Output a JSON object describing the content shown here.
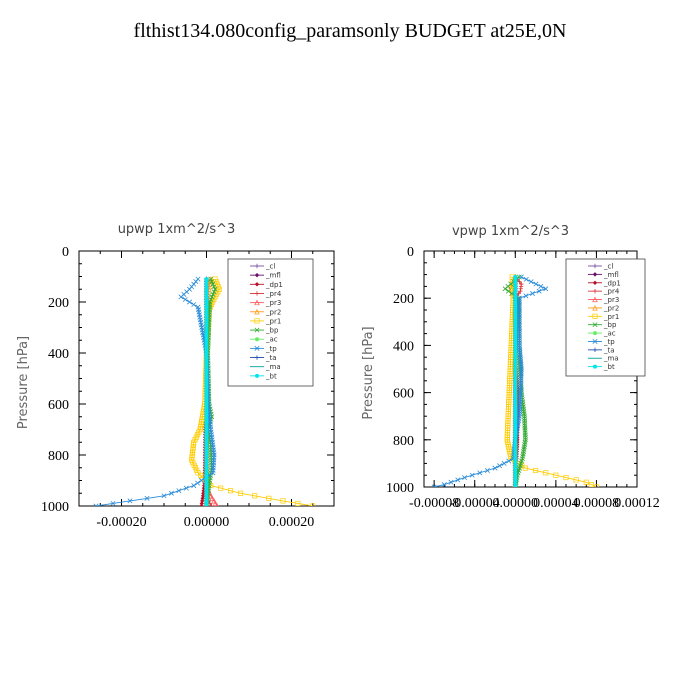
{
  "title": "flthist134.080config_paramsonly  BUDGET at25E,0N",
  "chart_data": [
    {
      "type": "line",
      "title": "upwp   1xm^2/s^3",
      "ylabel": "Pressure [hPa]",
      "ylim": [
        1000,
        0
      ],
      "xlim": [
        -0.0003,
        0.0003
      ],
      "xticks": [
        "-0.00020",
        "0.00000",
        "0.00020"
      ],
      "xtick_values": [
        -0.0002,
        0,
        0.0002
      ],
      "yticks": [
        "0",
        "200",
        "400",
        "600",
        "800",
        "1000"
      ],
      "ytick_values": [
        0,
        200,
        400,
        600,
        800,
        1000
      ],
      "legend_position": "top-right",
      "series": [
        {
          "name": "_cl",
          "color": "#7a4fa0",
          "marker": "+",
          "points": [
            [
              0,
              110
            ],
            [
              0,
              1000
            ]
          ]
        },
        {
          "name": "_mfl",
          "color": "#6a0f6a",
          "marker": "diamond",
          "points": [
            [
              0,
              110
            ],
            [
              0,
              1000
            ]
          ]
        },
        {
          "name": "_dp1",
          "color": "#b3122a",
          "marker": "diamond",
          "points": [
            [
              0,
              110
            ],
            [
              0,
              500
            ],
            [
              -3e-06,
              700
            ],
            [
              -4e-06,
              900
            ],
            [
              -8e-06,
              960
            ],
            [
              -1.2e-05,
              1000
            ]
          ]
        },
        {
          "name": "_pr4",
          "color": "#d9363e",
          "marker": "+",
          "points": [
            [
              0,
              110
            ],
            [
              0,
              950
            ],
            [
              8e-06,
              990
            ],
            [
              1.2e-05,
              1000
            ]
          ]
        },
        {
          "name": "_pr3",
          "color": "#ff5a5a",
          "marker": "triangle",
          "points": [
            [
              0,
              110
            ],
            [
              0,
              920
            ],
            [
              1e-05,
              960
            ],
            [
              2.5e-05,
              1000
            ]
          ]
        },
        {
          "name": "_pr2",
          "color": "#ff9a1a",
          "marker": "triangle",
          "points": [
            [
              1e-05,
              110
            ],
            [
              0,
              200
            ],
            [
              0,
              1000
            ]
          ]
        },
        {
          "name": "_pr1",
          "color": "#ffcc00",
          "marker": "square",
          "points": [
            [
              2e-05,
              110
            ],
            [
              3e-05,
              150
            ],
            [
              2e-05,
              180
            ],
            [
              6e-06,
              230
            ],
            [
              0,
              400
            ],
            [
              -4e-06,
              600
            ],
            [
              -1.5e-05,
              700
            ],
            [
              -3e-05,
              750
            ],
            [
              -3.5e-05,
              820
            ],
            [
              -2e-05,
              870
            ],
            [
              1e-05,
              920
            ],
            [
              8e-05,
              950
            ],
            [
              0.00018,
              980
            ],
            [
              0.00025,
              1000
            ]
          ]
        },
        {
          "name": "_bp",
          "color": "#33aa33",
          "marker": "x",
          "points": [
            [
              1e-05,
              110
            ],
            [
              2e-05,
              150
            ],
            [
              8e-06,
              200
            ],
            [
              3e-06,
              400
            ],
            [
              6e-06,
              600
            ],
            [
              1.2e-05,
              650
            ],
            [
              4e-06,
              700
            ],
            [
              1e-05,
              760
            ],
            [
              1.2e-05,
              850
            ],
            [
              6e-06,
              920
            ],
            [
              0,
              1000
            ]
          ]
        },
        {
          "name": "_ac",
          "color": "#66ee66",
          "marker": "circle",
          "points": [
            [
              0,
              110
            ],
            [
              0,
              1000
            ]
          ]
        },
        {
          "name": "_tp",
          "color": "#2a8bd8",
          "marker": "x",
          "points": [
            [
              -2e-05,
              110
            ],
            [
              -4e-05,
              150
            ],
            [
              -6e-05,
              180
            ],
            [
              -2e-05,
              220
            ],
            [
              0,
              400
            ],
            [
              4e-06,
              600
            ],
            [
              1e-05,
              700
            ],
            [
              1.8e-05,
              800
            ],
            [
              1.5e-05,
              870
            ],
            [
              -3e-05,
              920
            ],
            [
              -0.0001,
              960
            ],
            [
              -0.00022,
              990
            ],
            [
              -0.00026,
              1000
            ]
          ]
        },
        {
          "name": "_ta",
          "color": "#1f4fb0",
          "marker": "+",
          "points": [
            [
              0,
              110
            ],
            [
              0,
              1000
            ]
          ]
        },
        {
          "name": "_ma",
          "color": "#00a0a0",
          "marker": "line",
          "points": [
            [
              0,
              110
            ],
            [
              0,
              1000
            ]
          ]
        },
        {
          "name": "_bt",
          "color": "#00e5ee",
          "marker": "circle",
          "points": [
            [
              0,
              110
            ],
            [
              0,
              1000
            ]
          ]
        }
      ]
    },
    {
      "type": "line",
      "title": "vpwp   1xm^2/s^3",
      "ylabel": "Pressure [hPa]",
      "ylim": [
        1000,
        0
      ],
      "xlim": [
        -9e-05,
        0.00012
      ],
      "xticks": [
        "-0.00008",
        "-0.00004",
        "0.00000",
        "0.00004",
        "0.00008",
        "0.00012"
      ],
      "xtick_values": [
        -8e-05,
        -4e-05,
        0,
        4e-05,
        8e-05,
        0.00012
      ],
      "yticks": [
        "0",
        "200",
        "400",
        "600",
        "800",
        "1000"
      ],
      "ytick_values": [
        0,
        200,
        400,
        600,
        800,
        1000
      ],
      "legend_position": "top-right",
      "series": [
        {
          "name": "_cl",
          "color": "#7a4fa0",
          "marker": "+",
          "points": [
            [
              0,
              110
            ],
            [
              0,
              1000
            ]
          ]
        },
        {
          "name": "_mfl",
          "color": "#6a0f6a",
          "marker": "diamond",
          "points": [
            [
              0,
              110
            ],
            [
              0,
              1000
            ]
          ]
        },
        {
          "name": "_dp1",
          "color": "#b3122a",
          "marker": "diamond",
          "points": [
            [
              0,
              110
            ],
            [
              0,
              400
            ],
            [
              2e-06,
              600
            ],
            [
              2e-06,
              800
            ],
            [
              0,
              1000
            ]
          ]
        },
        {
          "name": "_pr4",
          "color": "#d9363e",
          "marker": "+",
          "points": [
            [
              0,
              110
            ],
            [
              6e-06,
              140
            ],
            [
              5e-06,
              170
            ],
            [
              0,
              200
            ],
            [
              0,
              1000
            ]
          ]
        },
        {
          "name": "_pr3",
          "color": "#ff5a5a",
          "marker": "triangle",
          "points": [
            [
              0,
              110
            ],
            [
              0,
              1000
            ]
          ]
        },
        {
          "name": "_pr2",
          "color": "#ff9a1a",
          "marker": "triangle",
          "points": [
            [
              0,
              110
            ],
            [
              -4e-06,
              150
            ],
            [
              0,
              200
            ],
            [
              0,
              1000
            ]
          ]
        },
        {
          "name": "_pr1",
          "color": "#ffcc00",
          "marker": "square",
          "points": [
            [
              -3e-06,
              110
            ],
            [
              -2e-06,
              200
            ],
            [
              -4e-06,
              400
            ],
            [
              -6e-06,
              600
            ],
            [
              -7e-06,
              700
            ],
            [
              -8e-06,
              800
            ],
            [
              -4e-06,
              880
            ],
            [
              1e-05,
              920
            ],
            [
              4e-05,
              950
            ],
            [
              7e-05,
              980
            ],
            [
              8e-05,
              1000
            ]
          ]
        },
        {
          "name": "_bp",
          "color": "#33aa33",
          "marker": "x",
          "points": [
            [
              4e-06,
              110
            ],
            [
              -1e-05,
              160
            ],
            [
              3e-06,
              200
            ],
            [
              4e-06,
              400
            ],
            [
              6e-06,
              600
            ],
            [
              9e-06,
              700
            ],
            [
              1e-05,
              800
            ],
            [
              7e-06,
              880
            ],
            [
              2e-06,
              950
            ],
            [
              0,
              1000
            ]
          ]
        },
        {
          "name": "_ac",
          "color": "#66ee66",
          "marker": "circle",
          "points": [
            [
              0,
              110
            ],
            [
              0,
              1000
            ]
          ]
        },
        {
          "name": "_tp",
          "color": "#2a8bd8",
          "marker": "x",
          "points": [
            [
              6e-06,
              110
            ],
            [
              3e-05,
              160
            ],
            [
              4e-06,
              200
            ],
            [
              4e-06,
              400
            ],
            [
              6e-06,
              500
            ],
            [
              4e-06,
              700
            ],
            [
              0,
              800
            ],
            [
              -2e-06,
              880
            ],
            [
              -2e-05,
              920
            ],
            [
              -5e-05,
              960
            ],
            [
              -7e-05,
              990
            ],
            [
              -8e-05,
              1000
            ]
          ]
        },
        {
          "name": "_ta",
          "color": "#1f4fb0",
          "marker": "+",
          "points": [
            [
              0,
              110
            ],
            [
              0,
              1000
            ]
          ]
        },
        {
          "name": "_ma",
          "color": "#00a0a0",
          "marker": "line",
          "points": [
            [
              0,
              110
            ],
            [
              0,
              1000
            ]
          ]
        },
        {
          "name": "_bt",
          "color": "#00e5ee",
          "marker": "circle",
          "points": [
            [
              0,
              110
            ],
            [
              0,
              1000
            ]
          ]
        }
      ]
    }
  ]
}
